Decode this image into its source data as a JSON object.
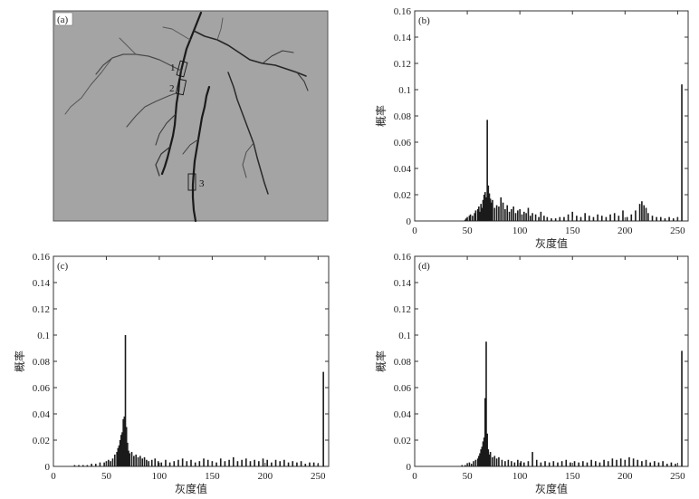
{
  "panel_a": {
    "label": "(a)",
    "markers": [
      "1",
      "2",
      "3"
    ],
    "background_color": "#a4a4a4",
    "crack_color": "#1a1a1a"
  },
  "chart_data": [
    {
      "type": "bar",
      "panel": "(b)",
      "xlabel": "灰度值",
      "ylabel": "概率",
      "xlim": [
        0,
        260
      ],
      "ylim": [
        0,
        0.16
      ],
      "xticks": [
        0,
        50,
        100,
        150,
        200,
        250
      ],
      "yticks": [
        "0",
        "0.02",
        "0.04",
        "0.06",
        "0.08",
        "0.1",
        "0.12",
        "0.14",
        "0.16"
      ],
      "x": [
        48,
        49,
        50,
        52,
        53,
        55,
        57,
        58,
        60,
        61,
        62,
        63,
        64,
        65,
        66,
        67,
        68,
        69,
        70,
        71,
        72,
        73,
        74,
        76,
        78,
        80,
        82,
        84,
        86,
        88,
        90,
        92,
        94,
        96,
        98,
        100,
        102,
        104,
        106,
        108,
        110,
        112,
        115,
        118,
        120,
        123,
        126,
        130,
        134,
        138,
        142,
        146,
        150,
        154,
        158,
        162,
        166,
        170,
        174,
        178,
        182,
        186,
        190,
        194,
        198,
        202,
        206,
        210,
        214,
        216,
        218,
        220,
        222,
        226,
        230,
        234,
        238,
        242,
        246,
        250,
        254
      ],
      "values": [
        0.001,
        0.002,
        0.003,
        0.004,
        0.005,
        0.004,
        0.006,
        0.008,
        0.009,
        0.011,
        0.007,
        0.013,
        0.01,
        0.016,
        0.02,
        0.022,
        0.018,
        0.077,
        0.027,
        0.021,
        0.017,
        0.014,
        0.016,
        0.01,
        0.012,
        0.011,
        0.018,
        0.014,
        0.009,
        0.012,
        0.007,
        0.009,
        0.011,
        0.006,
        0.008,
        0.009,
        0.005,
        0.007,
        0.006,
        0.01,
        0.004,
        0.006,
        0.005,
        0.003,
        0.007,
        0.004,
        0.003,
        0.002,
        0.002,
        0.003,
        0.003,
        0.005,
        0.007,
        0.004,
        0.003,
        0.006,
        0.004,
        0.003,
        0.005,
        0.004,
        0.003,
        0.005,
        0.006,
        0.004,
        0.008,
        0.003,
        0.005,
        0.008,
        0.013,
        0.015,
        0.012,
        0.01,
        0.006,
        0.004,
        0.003,
        0.003,
        0.002,
        0.003,
        0.002,
        0.003,
        0.104
      ]
    },
    {
      "type": "bar",
      "panel": "(c)",
      "xlabel": "灰度值",
      "ylabel": "概率",
      "xlim": [
        0,
        260
      ],
      "ylim": [
        0,
        0.16
      ],
      "xticks": [
        0,
        50,
        100,
        150,
        200,
        250
      ],
      "yticks": [
        "0",
        "0.02",
        "0.04",
        "0.06",
        "0.08",
        "0.1",
        "0.12",
        "0.14",
        "0.16"
      ],
      "x": [
        20,
        24,
        28,
        32,
        36,
        40,
        44,
        48,
        50,
        52,
        54,
        56,
        58,
        60,
        61,
        62,
        63,
        64,
        65,
        66,
        67,
        68,
        69,
        70,
        71,
        72,
        74,
        76,
        78,
        80,
        82,
        84,
        86,
        88,
        90,
        93,
        96,
        99,
        102,
        106,
        110,
        114,
        118,
        122,
        126,
        130,
        134,
        138,
        142,
        146,
        150,
        154,
        158,
        162,
        166,
        170,
        174,
        178,
        182,
        186,
        190,
        194,
        198,
        202,
        206,
        210,
        214,
        218,
        222,
        226,
        230,
        234,
        238,
        242,
        246,
        250,
        255
      ],
      "values": [
        0.001,
        0.001,
        0.001,
        0.001,
        0.002,
        0.002,
        0.003,
        0.003,
        0.004,
        0.005,
        0.004,
        0.006,
        0.009,
        0.011,
        0.014,
        0.016,
        0.02,
        0.024,
        0.026,
        0.036,
        0.038,
        0.1,
        0.03,
        0.018,
        0.012,
        0.01,
        0.011,
        0.008,
        0.009,
        0.007,
        0.008,
        0.006,
        0.007,
        0.005,
        0.004,
        0.005,
        0.006,
        0.004,
        0.003,
        0.005,
        0.003,
        0.004,
        0.005,
        0.006,
        0.004,
        0.005,
        0.003,
        0.004,
        0.006,
        0.005,
        0.004,
        0.003,
        0.006,
        0.004,
        0.005,
        0.007,
        0.004,
        0.005,
        0.006,
        0.004,
        0.005,
        0.004,
        0.006,
        0.005,
        0.003,
        0.005,
        0.004,
        0.005,
        0.003,
        0.004,
        0.003,
        0.004,
        0.002,
        0.003,
        0.003,
        0.002,
        0.072
      ]
    },
    {
      "type": "bar",
      "panel": "(d)",
      "xlabel": "灰度值",
      "ylabel": "概率",
      "xlim": [
        0,
        260
      ],
      "ylim": [
        0,
        0.16
      ],
      "xticks": [
        0,
        50,
        100,
        150,
        200,
        250
      ],
      "yticks": [
        "0",
        "0.02",
        "0.04",
        "0.06",
        "0.08",
        "0.1",
        "0.12",
        "0.14",
        "0.16"
      ],
      "x": [
        45,
        48,
        50,
        52,
        54,
        56,
        58,
        60,
        61,
        62,
        63,
        64,
        65,
        66,
        67,
        68,
        69,
        70,
        71,
        72,
        74,
        76,
        78,
        80,
        83,
        86,
        89,
        92,
        95,
        98,
        101,
        104,
        108,
        112,
        116,
        120,
        124,
        128,
        132,
        136,
        140,
        144,
        148,
        152,
        156,
        160,
        164,
        168,
        172,
        176,
        180,
        184,
        188,
        192,
        196,
        200,
        204,
        208,
        212,
        216,
        220,
        224,
        228,
        232,
        236,
        240,
        244,
        248,
        254
      ],
      "values": [
        0.001,
        0.001,
        0.002,
        0.003,
        0.002,
        0.004,
        0.005,
        0.006,
        0.008,
        0.01,
        0.013,
        0.015,
        0.019,
        0.022,
        0.052,
        0.095,
        0.025,
        0.013,
        0.009,
        0.011,
        0.007,
        0.008,
        0.006,
        0.007,
        0.005,
        0.004,
        0.005,
        0.004,
        0.003,
        0.005,
        0.004,
        0.003,
        0.004,
        0.011,
        0.005,
        0.003,
        0.004,
        0.003,
        0.004,
        0.003,
        0.004,
        0.005,
        0.003,
        0.004,
        0.003,
        0.004,
        0.003,
        0.005,
        0.004,
        0.003,
        0.005,
        0.004,
        0.006,
        0.005,
        0.006,
        0.005,
        0.007,
        0.006,
        0.005,
        0.004,
        0.005,
        0.003,
        0.004,
        0.003,
        0.004,
        0.002,
        0.003,
        0.002,
        0.088
      ]
    }
  ]
}
